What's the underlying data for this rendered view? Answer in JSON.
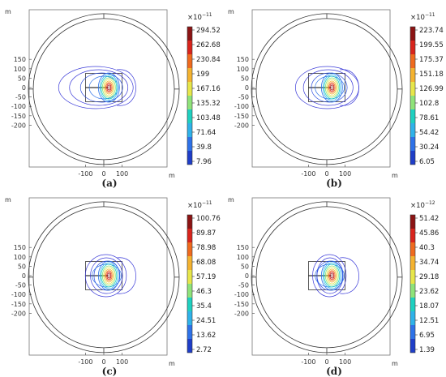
{
  "axis_unit": "m",
  "y_ticks": [
    "150",
    "100",
    "50",
    "0",
    "-50",
    "-100",
    "-150",
    "-200"
  ],
  "x_ticks": [
    "-100",
    "0",
    "100"
  ],
  "colormap": [
    "#1b1b8a",
    "#1f3ec8",
    "#2e72e8",
    "#2fb2e9",
    "#1fd0c0",
    "#8fe37a",
    "#e7e64a",
    "#f4b330",
    "#ef6a1e",
    "#d8241c",
    "#8c1414"
  ],
  "panels": [
    {
      "caption": "(a)",
      "exponent_base": "×10",
      "exponent_power": "−11",
      "scale": [
        "294.52",
        "262.68",
        "230.84",
        "199",
        "167.16",
        "135.32",
        "103.48",
        "71.64",
        "39.8",
        "7.96"
      ]
    },
    {
      "caption": "(b)",
      "exponent_base": "×10",
      "exponent_power": "−11",
      "scale": [
        "223.74",
        "199.55",
        "175.37",
        "151.18",
        "126.99",
        "102.8",
        "78.61",
        "54.42",
        "30.24",
        "6.05"
      ]
    },
    {
      "caption": "(c)",
      "exponent_base": "×10",
      "exponent_power": "−11",
      "scale": [
        "100.76",
        "89.87",
        "78.98",
        "68.08",
        "57.19",
        "46.3",
        "35.4",
        "24.51",
        "13.62",
        "2.72"
      ]
    },
    {
      "caption": "(d)",
      "exponent_base": "×10",
      "exponent_power": "−12",
      "scale": [
        "51.42",
        "45.86",
        "40.3",
        "34.74",
        "29.18",
        "23.62",
        "18.07",
        "12.51",
        "6.95",
        "1.39"
      ]
    }
  ]
}
